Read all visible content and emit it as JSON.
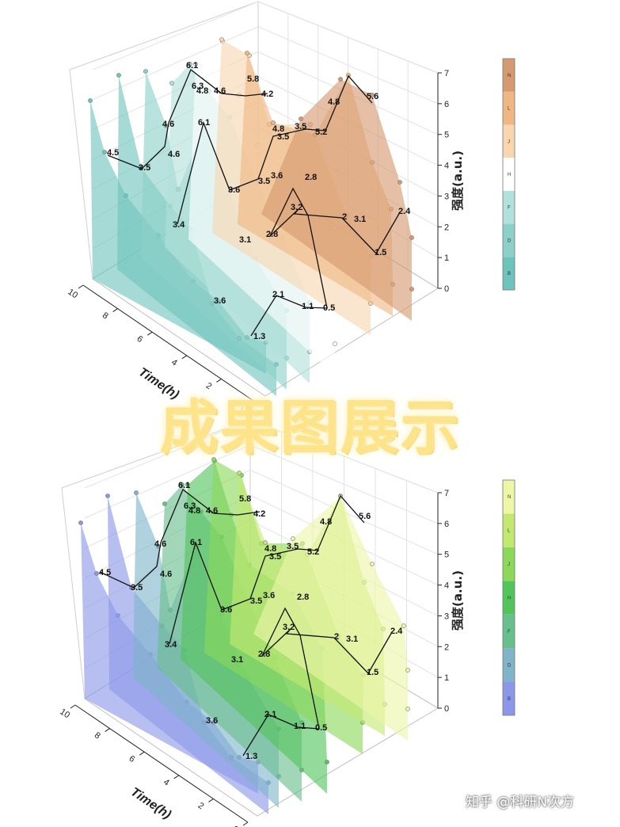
{
  "banner": {
    "text": "成果图展示"
  },
  "watermark": {
    "text": "知乎 @科研N次方"
  },
  "chart_data": [
    {
      "type": "3d-waterfall",
      "xlabel": "Time(h)",
      "ylabel": "强度(a.u.)",
      "x_ticks": [
        "10",
        "8",
        "6",
        "4",
        "2",
        "0"
      ],
      "y_ticks": [
        "0",
        "1",
        "2",
        "3",
        "4",
        "5",
        "6",
        "7"
      ],
      "zlim": [
        0,
        7
      ],
      "colorbar_labels": [
        "B",
        "D",
        "F",
        "H",
        "J",
        "L",
        "N"
      ],
      "colors": [
        "#6fc3bd",
        "#8dd0c9",
        "#b2e0da",
        "#ffffff",
        "#f7d6b0",
        "#efb783",
        "#d59a70"
      ],
      "labels": [
        "1.3",
        "2.1",
        "1.1",
        "0.5",
        "3.6",
        "3.1",
        "2.8",
        "3.2",
        "2",
        "3.1",
        "1.5",
        "2.4",
        "3.4",
        "6.1",
        "3.6",
        "3.5",
        "4.8",
        "3.5",
        "5.2",
        "4.8",
        "5.6",
        "4.5",
        "3.5",
        "4.6",
        "4.6",
        "6.1",
        "6.3",
        "4.8",
        "4.6",
        "5.8",
        "4.2",
        "3.5",
        "3.6",
        "2.8"
      ]
    },
    {
      "type": "3d-waterfall",
      "xlabel": "Time(h)",
      "ylabel": "强度(a.u.)",
      "x_ticks": [
        "10",
        "8",
        "6",
        "4",
        "2",
        "0"
      ],
      "y_ticks": [
        "0",
        "1",
        "2",
        "3",
        "4",
        "5",
        "6",
        "7"
      ],
      "zlim": [
        0,
        7
      ],
      "colorbar_labels": [
        "B",
        "D",
        "F",
        "H",
        "J",
        "L",
        "N"
      ],
      "colors": [
        "#8b97e8",
        "#7fb4c9",
        "#67bf8d",
        "#52c45c",
        "#8bd85a",
        "#c3e871",
        "#eef6a8"
      ],
      "labels": [
        "1.3",
        "2.1",
        "1.1",
        "0.5",
        "3.6",
        "3.1",
        "2.8",
        "3.2",
        "2",
        "3.1",
        "1.5",
        "2.4",
        "3.4",
        "6.1",
        "3.6",
        "3.5",
        "4.8",
        "3.5",
        "5.2",
        "4.8",
        "5.6",
        "4.5",
        "3.5",
        "4.6",
        "4.6",
        "6.1",
        "6.3",
        "4.8",
        "4.6",
        "5.8",
        "4.2",
        "3.5",
        "3.6",
        "2.8"
      ]
    }
  ]
}
